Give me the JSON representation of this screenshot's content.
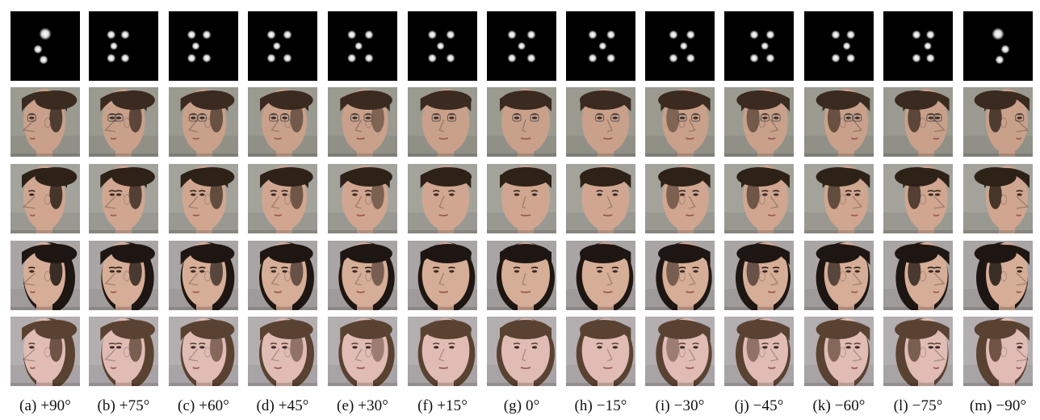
{
  "columns": [
    {
      "caption": "(a) +90°",
      "yaw": 90,
      "landmark_icon": "landmark-dots-icon",
      "face_icon": "face-profile-icon"
    },
    {
      "caption": "(b) +75°",
      "yaw": 75,
      "landmark_icon": "landmark-dots-icon",
      "face_icon": "face-profile-icon"
    },
    {
      "caption": "(c) +60°",
      "yaw": 60,
      "landmark_icon": "landmark-dots-icon",
      "face_icon": "face-profile-icon"
    },
    {
      "caption": "(d) +45°",
      "yaw": 45,
      "landmark_icon": "landmark-dots-icon",
      "face_icon": "face-profile-icon"
    },
    {
      "caption": "(e) +30°",
      "yaw": 30,
      "landmark_icon": "landmark-dots-icon",
      "face_icon": "face-profile-icon"
    },
    {
      "caption": "(f) +15°",
      "yaw": 15,
      "landmark_icon": "landmark-dots-icon",
      "face_icon": "face-profile-icon"
    },
    {
      "caption": "(g) 0°",
      "yaw": 0,
      "landmark_icon": "landmark-dots-icon",
      "face_icon": "face-frontal-icon"
    },
    {
      "caption": "(h) −15°",
      "yaw": -15,
      "landmark_icon": "landmark-dots-icon",
      "face_icon": "face-profile-icon"
    },
    {
      "caption": "(i) −30°",
      "yaw": -30,
      "landmark_icon": "landmark-dots-icon",
      "face_icon": "face-profile-icon"
    },
    {
      "caption": "(j) −45°",
      "yaw": -45,
      "landmark_icon": "landmark-dots-icon",
      "face_icon": "face-profile-icon"
    },
    {
      "caption": "(k) −60°",
      "yaw": -60,
      "landmark_icon": "landmark-dots-icon",
      "face_icon": "face-profile-icon"
    },
    {
      "caption": "(l) −75°",
      "yaw": -75,
      "landmark_icon": "landmark-dots-icon",
      "face_icon": "face-profile-icon"
    },
    {
      "caption": "(m) −90°",
      "yaw": -90,
      "landmark_icon": "landmark-dots-icon",
      "face_icon": "face-profile-icon"
    }
  ],
  "subjects": [
    {
      "kind": "man-glasses",
      "skin": "#c9a08a",
      "hair": "#3a2a20",
      "bg": "#9a9a90",
      "glasses": true,
      "long_hair": false
    },
    {
      "kind": "man",
      "skin": "#d0a690",
      "hair": "#2e2118",
      "bg": "#a3a39b",
      "glasses": false,
      "long_hair": false
    },
    {
      "kind": "woman-dark",
      "skin": "#d6ad96",
      "hair": "#1e1612",
      "bg": "#a9a5a4",
      "glasses": false,
      "long_hair": true
    },
    {
      "kind": "woman-light",
      "skin": "#e0bcb4",
      "hair": "#5a4232",
      "bg": "#b3aeb0",
      "glasses": false,
      "long_hair": true
    }
  ],
  "colors": {
    "landmark_bg": "#000000",
    "landmark_dot": "#ffffff",
    "page_bg": "#ffffff",
    "caption": "#111111"
  }
}
